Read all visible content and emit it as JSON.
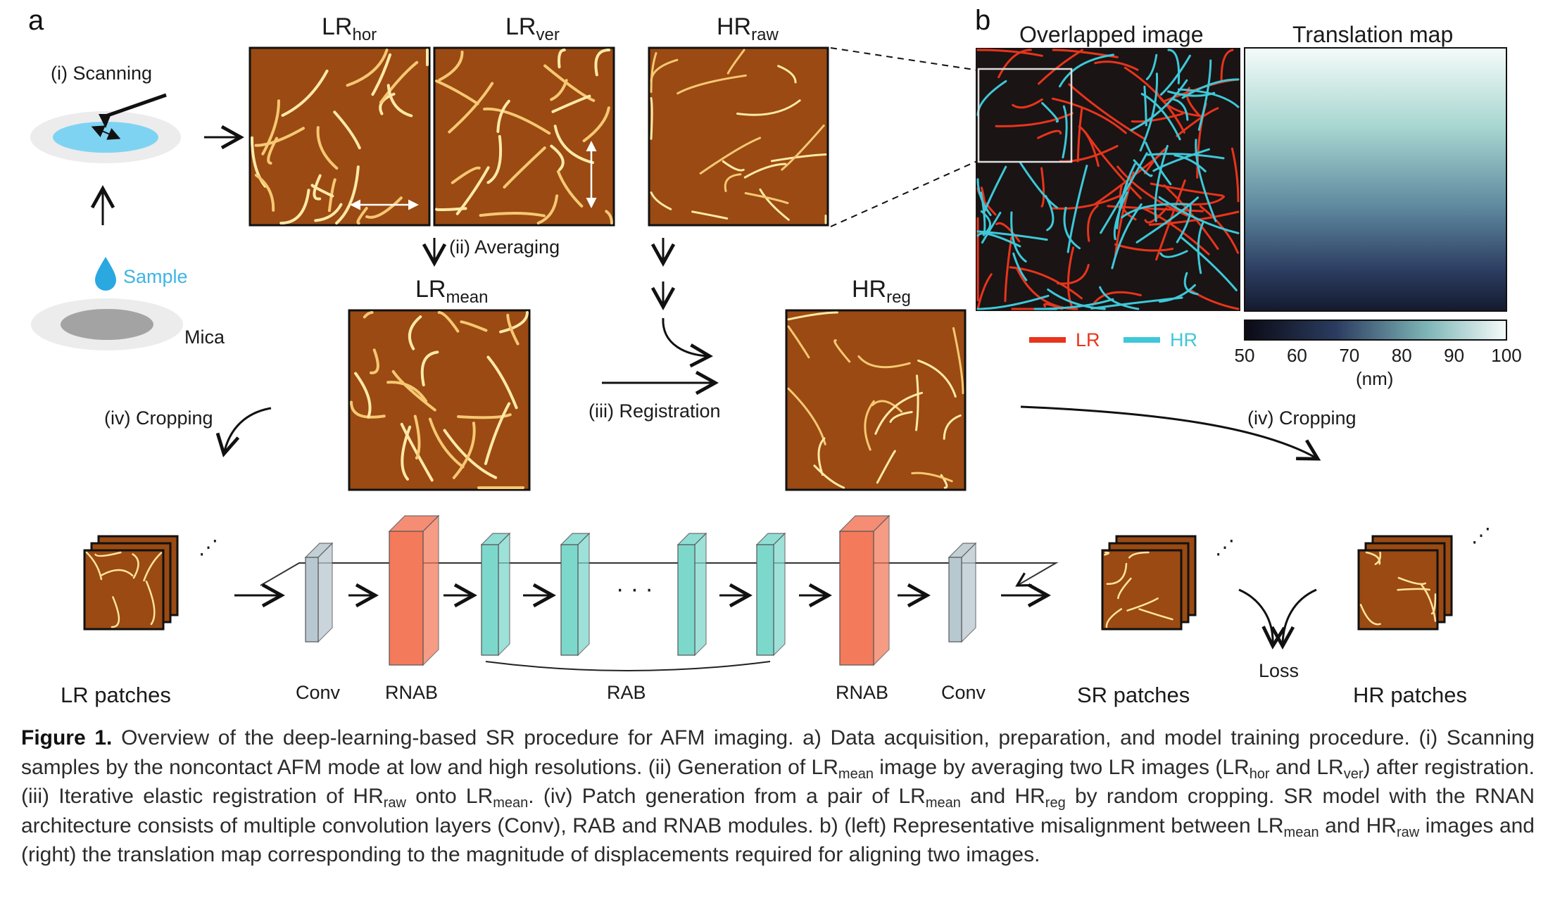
{
  "panel_labels": {
    "a": "a",
    "b": "b"
  },
  "panel_a": {
    "scanning_label": "(i) Scanning",
    "sample_label": "Sample",
    "mica_label": "Mica",
    "lr_hor": {
      "base": "LR",
      "sub": "hor"
    },
    "lr_ver": {
      "base": "LR",
      "sub": "ver"
    },
    "hr_raw": {
      "base": "HR",
      "sub": "raw"
    },
    "averaging_label": "(ii) Averaging",
    "lr_mean": {
      "base": "LR",
      "sub": "mean"
    },
    "hr_reg": {
      "base": "HR",
      "sub": "reg"
    },
    "registration_label": "(iii) Registration",
    "cropping_left_label": "(iv) Cropping",
    "cropping_right_label": "(iv) Cropping"
  },
  "network": {
    "lr_patches_label": "LR patches",
    "conv_left_label": "Conv",
    "rnab_left_label": "RNAB",
    "rab_label": "RAB",
    "dots_label": "· · ·",
    "rnab_right_label": "RNAB",
    "conv_right_label": "Conv",
    "sr_patches_label": "SR patches",
    "loss_label": "Loss",
    "hr_patches_label": "HR patches"
  },
  "panel_b": {
    "overlapped_title": "Overlapped image",
    "translation_title": "Translation map",
    "legend": [
      {
        "name": "LR",
        "color": "#e8341c"
      },
      {
        "name": "HR",
        "color": "#3ec8d8"
      }
    ],
    "colorbar_ticks": [
      "50",
      "60",
      "70",
      "80",
      "90",
      "100"
    ],
    "colorbar_unit": "(nm)",
    "colorbar_range": [
      50,
      100
    ]
  },
  "colors": {
    "afm_background": "#9a4a12",
    "conv_block": "#b8c8d0",
    "rnab_block": "#f47a5c",
    "rab_block": "#7dd8cc",
    "sample_blue": "#2aa8e0"
  },
  "caption": {
    "fig_label": "Figure 1.",
    "segments": [
      {
        "t": "  Overview of the deep-learning-based SR procedure for AFM imaging. a) Data acquisition, preparation, and model training procedure. (i) Scanning samples by the noncontact AFM mode at low and high resolutions. (ii) Generation of LR"
      },
      {
        "sub": "mean"
      },
      {
        "t": " image by averaging two LR images (LR"
      },
      {
        "sub": "hor"
      },
      {
        "t": " and LR"
      },
      {
        "sub": "ver"
      },
      {
        "t": ") after registration. (iii) Iterative elastic registration of HR"
      },
      {
        "sub": "raw"
      },
      {
        "t": " onto LR"
      },
      {
        "sub": "mean"
      },
      {
        "t": ". (iv) Patch generation from a pair of LR"
      },
      {
        "sub": "mean"
      },
      {
        "t": " and HR"
      },
      {
        "sub": "reg"
      },
      {
        "t": " by random cropping. SR model with the RNAN architecture consists of multiple convolution layers (Conv), RAB and RNAB modules. b) (left) Representative misalignment between LR"
      },
      {
        "sub": "mean"
      },
      {
        "t": " and HR"
      },
      {
        "sub": "raw"
      },
      {
        "t": " images and (right) the translation map corresponding to the magnitude of displacements required for aligning two images."
      }
    ]
  }
}
